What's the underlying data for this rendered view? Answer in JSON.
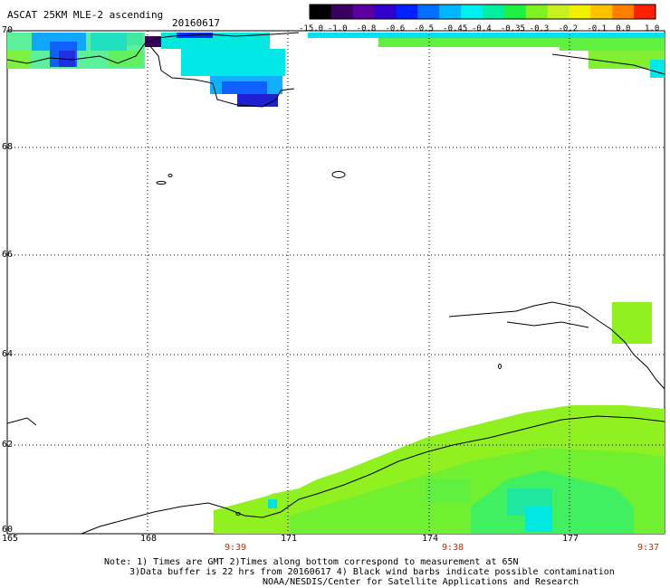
{
  "header": {
    "title": "ASCAT 25KM MLE-2 ascending",
    "date": "20160617"
  },
  "colorbar": {
    "labels": [
      "-15.0",
      "-1.0",
      "-0.8",
      "-0.6",
      "-0.5",
      "-0.45",
      "-0.4",
      "-0.35",
      "-0.3",
      "-0.2",
      "-0.1",
      "0.0",
      "1.0"
    ],
    "colors": [
      "#000000",
      "#3a0060",
      "#5a00a0",
      "#3000d0",
      "#0020ff",
      "#0070ff",
      "#00b8ff",
      "#00f0f0",
      "#00f0a0",
      "#20f040",
      "#80f020",
      "#c8f020",
      "#f0f000",
      "#ffc000",
      "#ff8000",
      "#ff2000"
    ]
  },
  "axes": {
    "lat_labels": [
      "70",
      "68",
      "66",
      "64",
      "62",
      "60"
    ],
    "lon_labels": [
      "165",
      "168",
      "171",
      "174",
      "177"
    ],
    "time_labels": [
      "9:39",
      "9:38",
      "9:37"
    ]
  },
  "notes": {
    "line1": "Note: 1) Times are GMT 2)Times along bottom correspond to measurement at 65N",
    "line2": "3)Data buffer is 22 hrs from 20160617 4) Black wind barbs indicate possible contamination",
    "line3": "NOAA/NESDIS/Center for Satellite Applications and Research"
  }
}
